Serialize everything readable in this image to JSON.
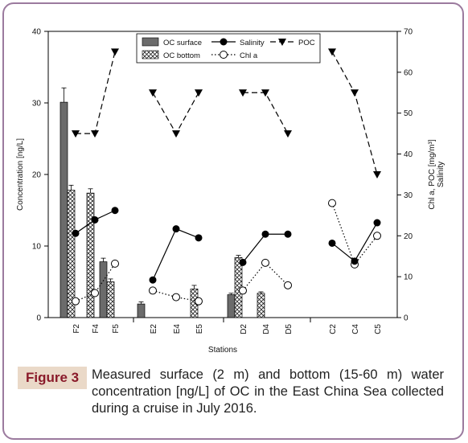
{
  "chart_data": {
    "type": "bar",
    "categories": [
      "F2",
      "F4",
      "F5",
      "E2",
      "E4",
      "E5",
      "D2",
      "D4",
      "D5",
      "C2",
      "C4",
      "C5"
    ],
    "xlabel": "Stations",
    "ylabel": "Concentration [ng/L]",
    "y2label": "Chl a, POC [mg/m³]",
    "y2label_sub": "Salinity",
    "ylim": [
      0,
      40
    ],
    "y2lim": [
      0,
      70
    ],
    "yticks": [
      0,
      10,
      20,
      30,
      40
    ],
    "y2ticks": [
      0,
      10,
      20,
      30,
      40,
      50,
      60,
      70
    ],
    "groups": [
      [
        "F2",
        "F4",
        "F5"
      ],
      [
        "E2",
        "E4",
        "E5"
      ],
      [
        "D2",
        "D4",
        "D5"
      ],
      [
        "C2",
        "C4",
        "C5"
      ]
    ],
    "legend": {
      "oc_surface": "OC surface",
      "oc_bottom": "OC bottom",
      "salinity": "Salinity",
      "chla": "Chl a",
      "poc": "POC"
    },
    "bars": {
      "oc_surface": [
        30.1,
        null,
        7.8,
        1.9,
        null,
        null,
        3.2,
        null,
        null,
        null,
        null,
        null
      ],
      "oc_surface_err": [
        2.0,
        null,
        0.5,
        0.3,
        null,
        null,
        0.2,
        null,
        null,
        null,
        null,
        null
      ],
      "oc_bottom": [
        17.8,
        17.4,
        5.0,
        null,
        null,
        4.0,
        8.4,
        3.4,
        null,
        null,
        null,
        null
      ],
      "oc_bottom_err": [
        0.7,
        0.6,
        0.4,
        null,
        null,
        0.5,
        0.3,
        0.2,
        null,
        null,
        null,
        null
      ]
    },
    "lines": {
      "salinity": [
        20.6,
        23.9,
        26.2,
        9.2,
        21.7,
        19.5,
        13.5,
        20.4,
        20.4,
        18.2,
        13.8,
        23.2
      ],
      "chla": [
        4.0,
        6.0,
        13.2,
        6.6,
        5.0,
        4.0,
        6.6,
        13.4,
        7.9,
        28.0,
        13.0,
        20.0
      ],
      "poc": [
        45,
        45,
        65,
        55,
        45,
        55,
        55,
        55,
        45,
        65,
        55,
        35
      ]
    }
  },
  "caption": {
    "label": "Figure 3",
    "text": "Measured surface (2 m) and bottom (15-60 m) water concentration [ng/L] of OC in the East China Sea collected during a cruise in July 2016."
  }
}
